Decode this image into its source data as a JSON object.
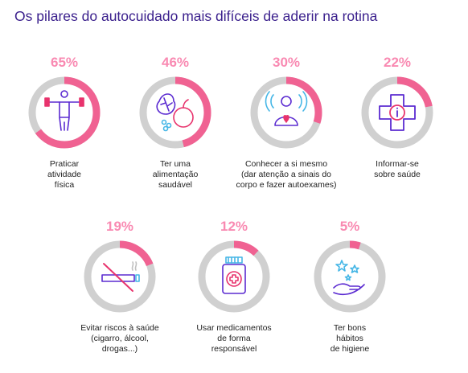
{
  "title": "Os pilares do autocuidado mais difíceis de aderir na rotina",
  "colors": {
    "accent": "#f06292",
    "track": "#d0d0d0",
    "icon_purple": "#5b2bd1",
    "icon_blue": "#45b6e6",
    "icon_pink": "#e8336d",
    "title": "#3a1f8c"
  },
  "items": [
    {
      "value_label": "65%",
      "label_lines": [
        "Praticar",
        "atividade",
        "física"
      ],
      "icon": "exercise-icon"
    },
    {
      "value_label": "46%",
      "label_lines": [
        "Ter uma",
        "alimentação",
        "saudável"
      ],
      "icon": "food-icon"
    },
    {
      "value_label": "30%",
      "label_lines": [
        "Conhecer a si mesmo",
        "(dar atenção a sinais do",
        "corpo e fazer autoexames)"
      ],
      "icon": "self-awareness-icon"
    },
    {
      "value_label": "22%",
      "label_lines": [
        "Informar-se",
        "sobre saúde"
      ],
      "icon": "health-info-icon"
    },
    {
      "value_label": "19%",
      "label_lines": [
        "Evitar riscos à saúde",
        "(cigarro, álcool,",
        "drogas...)"
      ],
      "icon": "no-smoking-icon"
    },
    {
      "value_label": "12%",
      "label_lines": [
        "Usar medicamentos",
        "de forma",
        "responsável"
      ],
      "icon": "medicine-icon"
    },
    {
      "value_label": "5%",
      "label_lines": [
        "Ter bons",
        "hábitos",
        "de higiene"
      ],
      "icon": "hygiene-icon"
    }
  ],
  "chart_data": {
    "type": "pie",
    "title": "Os pilares do autocuidado mais difíceis de aderir na rotina",
    "categories": [
      "Praticar atividade física",
      "Ter uma alimentação saudável",
      "Conhecer a si mesmo (dar atenção a sinais do corpo e fazer autoexames)",
      "Informar-se sobre saúde",
      "Evitar riscos à saúde (cigarro, álcool, drogas...)",
      "Usar medicamentos de forma responsável",
      "Ter bons hábitos de higiene"
    ],
    "values": [
      65,
      46,
      30,
      22,
      19,
      12,
      5
    ],
    "unit": "%"
  }
}
